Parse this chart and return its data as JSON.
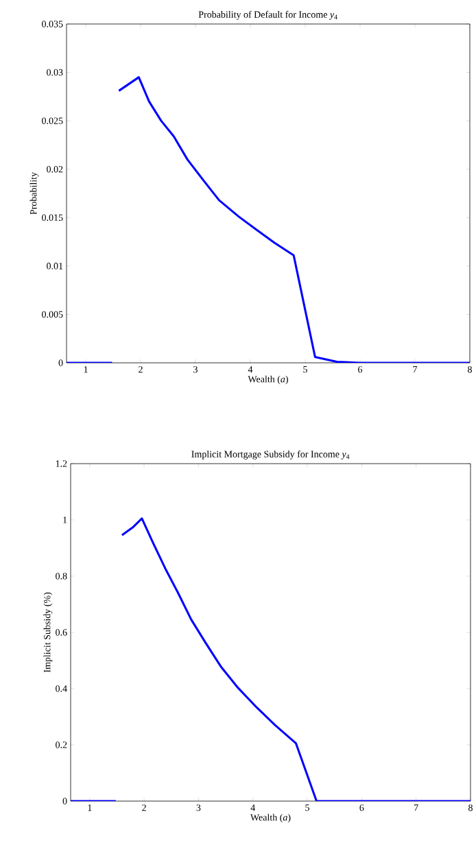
{
  "chart_data": [
    {
      "type": "line",
      "title": "Probability of Default for Income *y*$_{4}$",
      "xlabel": "Wealth (*a*)",
      "ylabel": "Probability",
      "color": "#0000ff",
      "x": [
        0.65,
        1.0,
        1.48,
        1.55,
        1.604,
        1.967,
        2.154,
        2.375,
        2.604,
        2.854,
        3.125,
        3.43,
        3.79,
        4.1,
        4.44,
        4.79,
        5.18,
        5.58,
        6.0,
        7.0,
        8.0
      ],
      "values": [
        0,
        0,
        0,
        null,
        0.0281,
        0.0295,
        0.027,
        0.025,
        0.0234,
        0.021,
        0.019,
        0.0168,
        0.0151,
        0.0138,
        0.0124,
        0.0111,
        0.0006,
        0.0001,
        0,
        0,
        0
      ],
      "xlim": [
        0.65,
        8
      ],
      "ylim": [
        0,
        0.035
      ],
      "xticks": [
        1,
        2,
        3,
        4,
        5,
        6,
        7,
        8
      ],
      "yticks": [
        0,
        0.005,
        0.01,
        0.015,
        0.02,
        0.025,
        0.03,
        0.035
      ]
    },
    {
      "type": "line",
      "title": "Implicit Mortgage Subsidy for Income *y*$_{4}$",
      "xlabel": "Wealth (*a*)",
      "ylabel": "Implicit Subsidy (%)",
      "color": "#0000ff",
      "x": [
        0.65,
        1.0,
        1.48,
        1.55,
        1.594,
        1.79,
        1.96,
        2.17,
        2.39,
        2.62,
        2.865,
        3.13,
        3.42,
        3.73,
        4.07,
        4.41,
        4.79,
        5.17,
        6.0,
        7.0,
        8.0
      ],
      "values": [
        0,
        0,
        0,
        null,
        0.946,
        0.973,
        1.005,
        0.916,
        0.827,
        0.742,
        0.646,
        0.563,
        0.476,
        0.402,
        0.333,
        0.27,
        0.206,
        0,
        0,
        0,
        0
      ],
      "xlim": [
        0.65,
        8
      ],
      "ylim": [
        0,
        1.2
      ],
      "xticks": [
        1,
        2,
        3,
        4,
        5,
        6,
        7,
        8
      ],
      "yticks": [
        0,
        0.2,
        0.4,
        0.6,
        0.8,
        1,
        1.2
      ]
    }
  ]
}
